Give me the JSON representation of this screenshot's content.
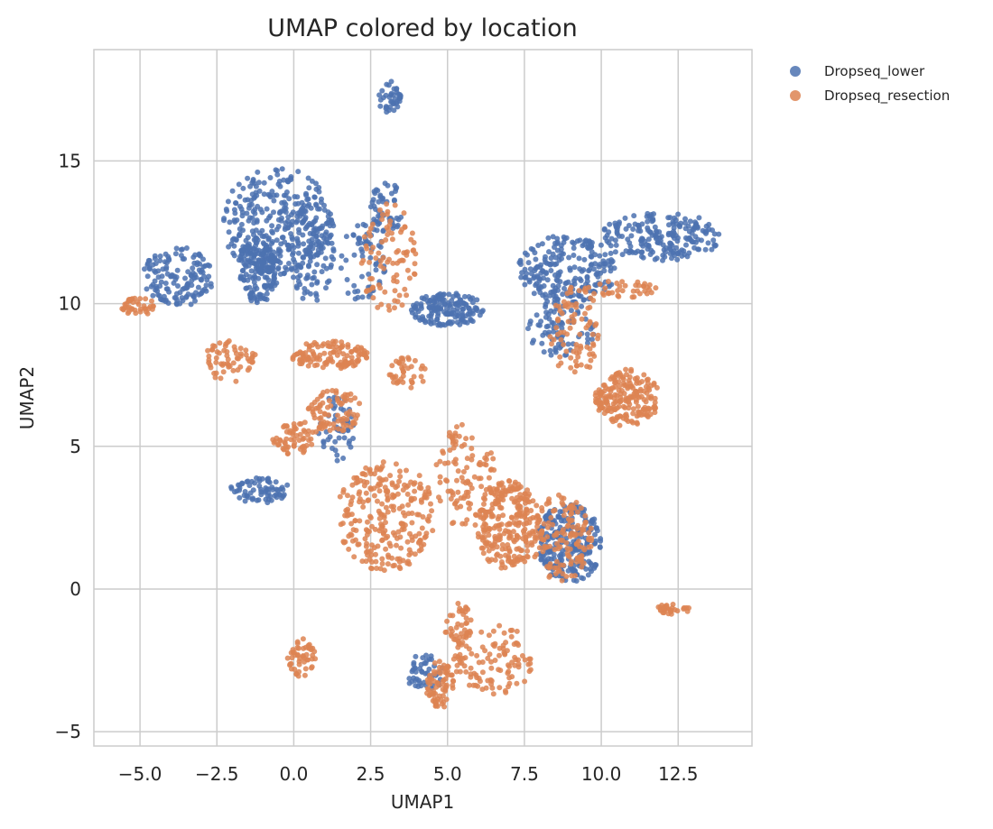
{
  "chart_data": {
    "type": "scatter",
    "title": "UMAP colored by location",
    "xlabel": "UMAP1",
    "ylabel": "UMAP2",
    "xlim": [
      -6.5,
      14.9
    ],
    "ylim": [
      -5.5,
      18.9
    ],
    "xticks": [
      -5.0,
      -2.5,
      0.0,
      2.5,
      5.0,
      7.5,
      10.0,
      12.5
    ],
    "xtick_labels": [
      "−5.0",
      "−2.5",
      "0.0",
      "2.5",
      "5.0",
      "7.5",
      "10.0",
      "12.5"
    ],
    "yticks": [
      -5,
      0,
      5,
      10,
      15
    ],
    "ytick_labels": [
      "−5",
      "0",
      "5",
      "10",
      "15"
    ],
    "grid": true,
    "legend_position": "outside-top-right",
    "series": [
      {
        "name": "Dropseq_lower",
        "color": "#4c72b0",
        "clusters": [
          {
            "x": [
              -2.4,
              1.3
            ],
            "y": [
              11.0,
              14.8
            ],
            "n": 320
          },
          {
            "x": [
              -1.8,
              -0.5
            ],
            "y": [
              10.0,
              12.5
            ],
            "n": 160
          },
          {
            "x": [
              -4.9,
              -2.6
            ],
            "y": [
              9.9,
              12.0
            ],
            "n": 140
          },
          {
            "x": [
              -0.2,
              1.3
            ],
            "y": [
              10.0,
              13.7
            ],
            "n": 100
          },
          {
            "x": [
              1.5,
              3.0
            ],
            "y": [
              10.0,
              13.0
            ],
            "n": 60
          },
          {
            "x": [
              2.5,
              3.6
            ],
            "y": [
              12.5,
              14.3
            ],
            "n": 50
          },
          {
            "x": [
              2.7,
              3.5
            ],
            "y": [
              16.7,
              17.8
            ],
            "n": 40
          },
          {
            "x": [
              3.8,
              6.2
            ],
            "y": [
              9.2,
              10.4
            ],
            "n": 160
          },
          {
            "x": [
              7.3,
              10.5
            ],
            "y": [
              10.0,
              12.4
            ],
            "n": 220
          },
          {
            "x": [
              10.0,
              13.9
            ],
            "y": [
              11.5,
              13.2
            ],
            "n": 200
          },
          {
            "x": [
              7.6,
              9.8
            ],
            "y": [
              8.1,
              10.2
            ],
            "n": 90
          },
          {
            "x": [
              -2.1,
              -0.1
            ],
            "y": [
              3.0,
              3.9
            ],
            "n": 70
          },
          {
            "x": [
              0.8,
              2.0
            ],
            "y": [
              4.5,
              6.8
            ],
            "n": 50
          },
          {
            "x": [
              7.9,
              10.0
            ],
            "y": [
              0.2,
              3.0
            ],
            "n": 240
          },
          {
            "x": [
              3.6,
              4.9
            ],
            "y": [
              -3.6,
              -2.3
            ],
            "n": 50
          }
        ]
      },
      {
        "name": "Dropseq_resection",
        "color": "#dd8452",
        "clusters": [
          {
            "x": [
              -5.6,
              -4.5
            ],
            "y": [
              9.6,
              10.2
            ],
            "n": 40
          },
          {
            "x": [
              -3.0,
              -1.2
            ],
            "y": [
              7.2,
              8.7
            ],
            "n": 60
          },
          {
            "x": [
              -0.1,
              2.4
            ],
            "y": [
              7.7,
              8.7
            ],
            "n": 120
          },
          {
            "x": [
              3.1,
              4.3
            ],
            "y": [
              7.0,
              8.2
            ],
            "n": 40
          },
          {
            "x": [
              2.2,
              4.0
            ],
            "y": [
              9.6,
              13.5
            ],
            "n": 90
          },
          {
            "x": [
              9.8,
              11.9
            ],
            "y": [
              5.7,
              7.7
            ],
            "n": 200
          },
          {
            "x": [
              8.3,
              10.0
            ],
            "y": [
              7.4,
              10.6
            ],
            "n": 80
          },
          {
            "x": [
              9.4,
              11.8
            ],
            "y": [
              10.2,
              10.8
            ],
            "n": 40
          },
          {
            "x": [
              0.4,
              2.2
            ],
            "y": [
              5.5,
              7.0
            ],
            "n": 80
          },
          {
            "x": [
              -0.7,
              0.8
            ],
            "y": [
              4.7,
              5.9
            ],
            "n": 60
          },
          {
            "x": [
              1.4,
              4.6
            ],
            "y": [
              0.6,
              4.5
            ],
            "n": 260
          },
          {
            "x": [
              4.6,
              6.6
            ],
            "y": [
              2.1,
              5.8
            ],
            "n": 100
          },
          {
            "x": [
              5.9,
              8.0
            ],
            "y": [
              0.7,
              3.8
            ],
            "n": 260
          },
          {
            "x": [
              7.7,
              9.7
            ],
            "y": [
              0.2,
              3.3
            ],
            "n": 140
          },
          {
            "x": [
              11.8,
              12.9
            ],
            "y": [
              -0.9,
              -0.5
            ],
            "n": 30
          },
          {
            "x": [
              -0.2,
              0.7
            ],
            "y": [
              -3.1,
              -1.7
            ],
            "n": 50
          },
          {
            "x": [
              4.3,
              5.2
            ],
            "y": [
              -4.2,
              -2.5
            ],
            "n": 70
          },
          {
            "x": [
              5.2,
              7.8
            ],
            "y": [
              -3.7,
              -1.2
            ],
            "n": 110
          },
          {
            "x": [
              4.9,
              5.8
            ],
            "y": [
              -2.0,
              -0.5
            ],
            "n": 40
          }
        ]
      }
    ]
  }
}
